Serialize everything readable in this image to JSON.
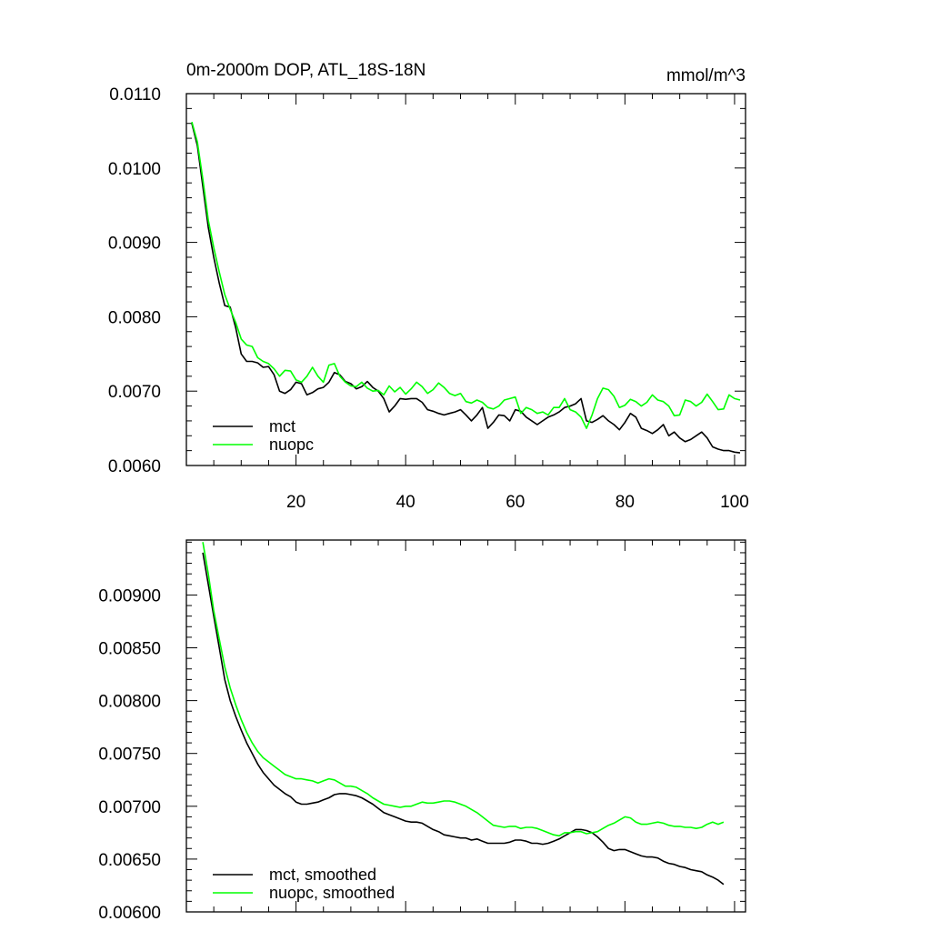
{
  "chart_data": [
    {
      "type": "line",
      "title": "0m-2000m DOP, ATL_18S-18N",
      "units": "mmol/m^3",
      "xlim": [
        0,
        102
      ],
      "ylim": [
        0.006,
        0.011
      ],
      "xticks": [
        20,
        40,
        60,
        80,
        100
      ],
      "xtick_labels": [
        "20",
        "40",
        "60",
        "80",
        "100"
      ],
      "yticks": [
        0.006,
        0.007,
        0.008,
        0.009,
        0.01,
        0.011
      ],
      "ytick_labels": [
        "0.0060",
        "0.0070",
        "0.0080",
        "0.0090",
        "0.0100",
        "0.0110"
      ],
      "legend": [
        "mct",
        "nuopc"
      ],
      "legend_position": "bottom-left",
      "series": [
        {
          "name": "mct",
          "color": "#000000",
          "x": [
            1,
            2,
            3,
            4,
            5,
            6,
            7,
            8,
            9,
            10,
            11,
            12,
            13,
            14,
            15,
            16,
            17,
            18,
            19,
            20,
            21,
            22,
            23,
            24,
            25,
            26,
            27,
            28,
            29,
            30,
            31,
            32,
            33,
            34,
            35,
            36,
            37,
            38,
            39,
            40,
            41,
            42,
            43,
            44,
            45,
            46,
            47,
            48,
            49,
            50,
            51,
            52,
            53,
            54,
            55,
            56,
            57,
            58,
            59,
            60,
            61,
            62,
            63,
            64,
            65,
            66,
            67,
            68,
            69,
            70,
            71,
            72,
            73,
            74,
            75,
            76,
            77,
            78,
            79,
            80,
            81,
            82,
            83,
            84,
            85,
            86,
            87,
            88,
            89,
            90,
            91,
            92,
            93,
            94,
            95,
            96,
            97,
            98,
            99,
            100,
            101
          ],
          "y": [
            0.0106,
            0.0103,
            0.00975,
            0.0092,
            0.0088,
            0.00845,
            0.00815,
            0.00813,
            0.00785,
            0.0075,
            0.0074,
            0.0074,
            0.00738,
            0.00732,
            0.00733,
            0.00722,
            0.007,
            0.00697,
            0.00702,
            0.00712,
            0.0071,
            0.00695,
            0.00698,
            0.00703,
            0.00705,
            0.00712,
            0.00725,
            0.00722,
            0.00713,
            0.0071,
            0.00703,
            0.00706,
            0.00713,
            0.00705,
            0.007,
            0.0069,
            0.00672,
            0.0068,
            0.0069,
            0.00689,
            0.0069,
            0.0069,
            0.00685,
            0.00675,
            0.00673,
            0.0067,
            0.00668,
            0.0067,
            0.00672,
            0.00675,
            0.00668,
            0.0066,
            0.00668,
            0.00678,
            0.0065,
            0.00658,
            0.00668,
            0.00667,
            0.0066,
            0.00675,
            0.00673,
            0.00665,
            0.0066,
            0.00655,
            0.0066,
            0.00665,
            0.00668,
            0.00672,
            0.00678,
            0.0068,
            0.00683,
            0.0069,
            0.0066,
            0.00658,
            0.00662,
            0.00667,
            0.0066,
            0.00655,
            0.00648,
            0.00658,
            0.0067,
            0.00665,
            0.0065,
            0.00647,
            0.00643,
            0.00648,
            0.00655,
            0.0064,
            0.00645,
            0.00637,
            0.00632,
            0.00635,
            0.0064,
            0.00645,
            0.00637,
            0.00625,
            0.00622,
            0.0062,
            0.0062,
            0.00618,
            0.00617
          ]
        },
        {
          "name": "nuopc",
          "color": "#00ff00",
          "x": [
            1,
            2,
            3,
            4,
            5,
            6,
            7,
            8,
            9,
            10,
            11,
            12,
            13,
            14,
            15,
            16,
            17,
            18,
            19,
            20,
            21,
            22,
            23,
            24,
            25,
            26,
            27,
            28,
            29,
            30,
            31,
            32,
            33,
            34,
            35,
            36,
            37,
            38,
            39,
            40,
            41,
            42,
            43,
            44,
            45,
            46,
            47,
            48,
            49,
            50,
            51,
            52,
            53,
            54,
            55,
            56,
            57,
            58,
            59,
            60,
            61,
            62,
            63,
            64,
            65,
            66,
            67,
            68,
            69,
            70,
            71,
            72,
            73,
            74,
            75,
            76,
            77,
            78,
            79,
            80,
            81,
            82,
            83,
            84,
            85,
            86,
            87,
            88,
            89,
            90,
            91,
            92,
            93,
            94,
            95,
            96,
            97,
            98,
            99,
            100,
            101
          ],
          "y": [
            0.01062,
            0.01035,
            0.00985,
            0.0093,
            0.00893,
            0.0086,
            0.0083,
            0.0081,
            0.00792,
            0.0077,
            0.00762,
            0.0076,
            0.00745,
            0.0074,
            0.00737,
            0.0073,
            0.0072,
            0.00728,
            0.00727,
            0.00715,
            0.00712,
            0.0072,
            0.00732,
            0.0072,
            0.00712,
            0.00735,
            0.00737,
            0.0072,
            0.00712,
            0.00707,
            0.00706,
            0.00712,
            0.00704,
            0.007,
            0.00701,
            0.00695,
            0.00707,
            0.00699,
            0.00705,
            0.00696,
            0.00703,
            0.00712,
            0.00706,
            0.00697,
            0.00702,
            0.00711,
            0.00705,
            0.00697,
            0.00694,
            0.00697,
            0.00686,
            0.00684,
            0.00688,
            0.00685,
            0.00678,
            0.00676,
            0.0068,
            0.00688,
            0.0069,
            0.00692,
            0.0067,
            0.00678,
            0.00675,
            0.0067,
            0.00672,
            0.00668,
            0.00678,
            0.00678,
            0.0069,
            0.00675,
            0.00672,
            0.00665,
            0.0065,
            0.00668,
            0.0069,
            0.00704,
            0.00702,
            0.00693,
            0.00678,
            0.00681,
            0.00689,
            0.00686,
            0.0068,
            0.00685,
            0.00695,
            0.00688,
            0.00686,
            0.0068,
            0.00667,
            0.00668,
            0.00688,
            0.00686,
            0.0068,
            0.00685,
            0.00696,
            0.00686,
            0.00675,
            0.00676,
            0.00695,
            0.0069,
            0.00688
          ]
        }
      ]
    },
    {
      "type": "line",
      "title": "",
      "xlim": [
        0,
        102
      ],
      "ylim": [
        0.006,
        0.00952
      ],
      "xticks": [
        20,
        40,
        60,
        80,
        100
      ],
      "xtick_labels": [],
      "yticks": [
        0.006,
        0.0065,
        0.007,
        0.0075,
        0.008,
        0.0085,
        0.009
      ],
      "ytick_labels": [
        "0.00600",
        "0.00650",
        "0.00700",
        "0.00750",
        "0.00800",
        "0.00850",
        "0.00900"
      ],
      "legend": [
        "mct, smoothed",
        "nuopc, smoothed"
      ],
      "legend_position": "bottom-left",
      "series": [
        {
          "name": "mct, smoothed",
          "color": "#000000",
          "x": [
            3,
            4,
            5,
            6,
            7,
            8,
            9,
            10,
            11,
            12,
            13,
            14,
            15,
            16,
            17,
            18,
            19,
            20,
            21,
            22,
            23,
            24,
            25,
            26,
            27,
            28,
            29,
            30,
            31,
            32,
            33,
            34,
            35,
            36,
            37,
            38,
            39,
            40,
            41,
            42,
            43,
            44,
            45,
            46,
            47,
            48,
            49,
            50,
            51,
            52,
            53,
            54,
            55,
            56,
            57,
            58,
            59,
            60,
            61,
            62,
            63,
            64,
            65,
            66,
            67,
            68,
            69,
            70,
            71,
            72,
            73,
            74,
            75,
            76,
            77,
            78,
            79,
            80,
            81,
            82,
            83,
            84,
            85,
            86,
            87,
            88,
            89,
            90,
            91,
            92,
            93,
            94,
            95,
            96,
            97,
            98
          ],
          "y": [
            0.0094,
            0.0091,
            0.0088,
            0.0085,
            0.0082,
            0.008,
            0.00785,
            0.00772,
            0.0076,
            0.0075,
            0.0074,
            0.00732,
            0.00726,
            0.0072,
            0.00716,
            0.00712,
            0.00709,
            0.00704,
            0.00702,
            0.00702,
            0.00703,
            0.00704,
            0.00706,
            0.00708,
            0.00711,
            0.00712,
            0.00712,
            0.00711,
            0.0071,
            0.00708,
            0.00705,
            0.00702,
            0.00698,
            0.00694,
            0.00692,
            0.0069,
            0.00688,
            0.00686,
            0.00685,
            0.00685,
            0.00684,
            0.00681,
            0.00678,
            0.00676,
            0.00673,
            0.00672,
            0.00671,
            0.0067,
            0.0067,
            0.00668,
            0.00669,
            0.00667,
            0.00665,
            0.00665,
            0.00665,
            0.00665,
            0.00666,
            0.00668,
            0.00668,
            0.00667,
            0.00665,
            0.00665,
            0.00664,
            0.00665,
            0.00667,
            0.00669,
            0.00672,
            0.00675,
            0.00678,
            0.00678,
            0.00677,
            0.00675,
            0.00671,
            0.00666,
            0.0066,
            0.00658,
            0.00659,
            0.00659,
            0.00657,
            0.00655,
            0.00653,
            0.00652,
            0.00652,
            0.00651,
            0.00648,
            0.00646,
            0.00645,
            0.00643,
            0.00642,
            0.0064,
            0.00639,
            0.00638,
            0.00635,
            0.00633,
            0.0063,
            0.00626
          ]
        },
        {
          "name": "nuopc, smoothed",
          "color": "#00ff00",
          "x": [
            3,
            4,
            5,
            6,
            7,
            8,
            9,
            10,
            11,
            12,
            13,
            14,
            15,
            16,
            17,
            18,
            19,
            20,
            21,
            22,
            23,
            24,
            25,
            26,
            27,
            28,
            29,
            30,
            31,
            32,
            33,
            34,
            35,
            36,
            37,
            38,
            39,
            40,
            41,
            42,
            43,
            44,
            45,
            46,
            47,
            48,
            49,
            50,
            51,
            52,
            53,
            54,
            55,
            56,
            57,
            58,
            59,
            60,
            61,
            62,
            63,
            64,
            65,
            66,
            67,
            68,
            69,
            70,
            71,
            72,
            73,
            74,
            75,
            76,
            77,
            78,
            79,
            80,
            81,
            82,
            83,
            84,
            85,
            86,
            87,
            88,
            89,
            90,
            91,
            92,
            93,
            94,
            95,
            96,
            97,
            98
          ],
          "y": [
            0.0095,
            0.0092,
            0.00885,
            0.00858,
            0.00832,
            0.00812,
            0.00796,
            0.00782,
            0.0077,
            0.0076,
            0.00752,
            0.00746,
            0.00742,
            0.00738,
            0.00734,
            0.0073,
            0.00728,
            0.00726,
            0.00726,
            0.00725,
            0.00724,
            0.00722,
            0.00724,
            0.00726,
            0.00725,
            0.00722,
            0.00719,
            0.00719,
            0.00718,
            0.00715,
            0.00712,
            0.00708,
            0.00705,
            0.00702,
            0.00701,
            0.007,
            0.00699,
            0.007,
            0.007,
            0.00702,
            0.00704,
            0.00703,
            0.00703,
            0.00704,
            0.00705,
            0.00705,
            0.00704,
            0.00702,
            0.007,
            0.00697,
            0.00694,
            0.0069,
            0.00686,
            0.00682,
            0.00681,
            0.0068,
            0.00681,
            0.00681,
            0.00679,
            0.0068,
            0.0068,
            0.00679,
            0.00677,
            0.00675,
            0.00673,
            0.00672,
            0.00675,
            0.00675,
            0.00676,
            0.00676,
            0.00674,
            0.00675,
            0.00676,
            0.00679,
            0.00682,
            0.00684,
            0.00687,
            0.0069,
            0.00689,
            0.00685,
            0.00683,
            0.00683,
            0.00684,
            0.00685,
            0.00684,
            0.00682,
            0.00681,
            0.00681,
            0.0068,
            0.0068,
            0.00679,
            0.0068,
            0.00683,
            0.00685,
            0.00683,
            0.00685
          ]
        }
      ]
    }
  ]
}
